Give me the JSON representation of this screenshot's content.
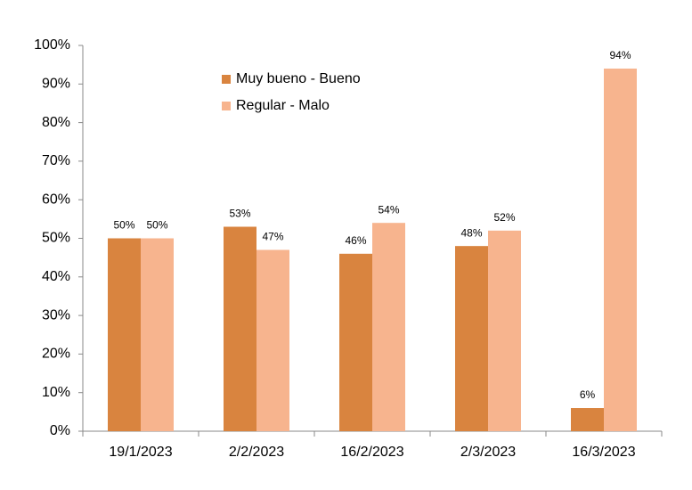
{
  "chart_data": {
    "type": "bar",
    "categories": [
      "19/1/2023",
      "2/2/2023",
      "16/2/2023",
      "2/3/2023",
      "16/3/2023"
    ],
    "series": [
      {
        "name": "Muy bueno - Bueno",
        "color": "#d9843f",
        "values": [
          50,
          53,
          46,
          48,
          6
        ],
        "value_labels": [
          "50%",
          "53%",
          "46%",
          "48%",
          "6%"
        ]
      },
      {
        "name": "Regular - Malo",
        "color": "#f7b48e",
        "values": [
          50,
          47,
          54,
          52,
          94
        ],
        "value_labels": [
          "50%",
          "47%",
          "54%",
          "52%",
          "94%"
        ]
      }
    ],
    "ylim": [
      0,
      100
    ],
    "yticks": [
      {
        "value": 0,
        "label": "0%"
      },
      {
        "value": 10,
        "label": "10%"
      },
      {
        "value": 20,
        "label": "20%"
      },
      {
        "value": 30,
        "label": "30%"
      },
      {
        "value": 40,
        "label": "40%"
      },
      {
        "value": 50,
        "label": "50%"
      },
      {
        "value": 60,
        "label": "60%"
      },
      {
        "value": 70,
        "label": "70%"
      },
      {
        "value": 80,
        "label": "80%"
      },
      {
        "value": 90,
        "label": "90%"
      },
      {
        "value": 100,
        "label": "100%"
      }
    ],
    "grid": false,
    "legend": "upper-left"
  }
}
